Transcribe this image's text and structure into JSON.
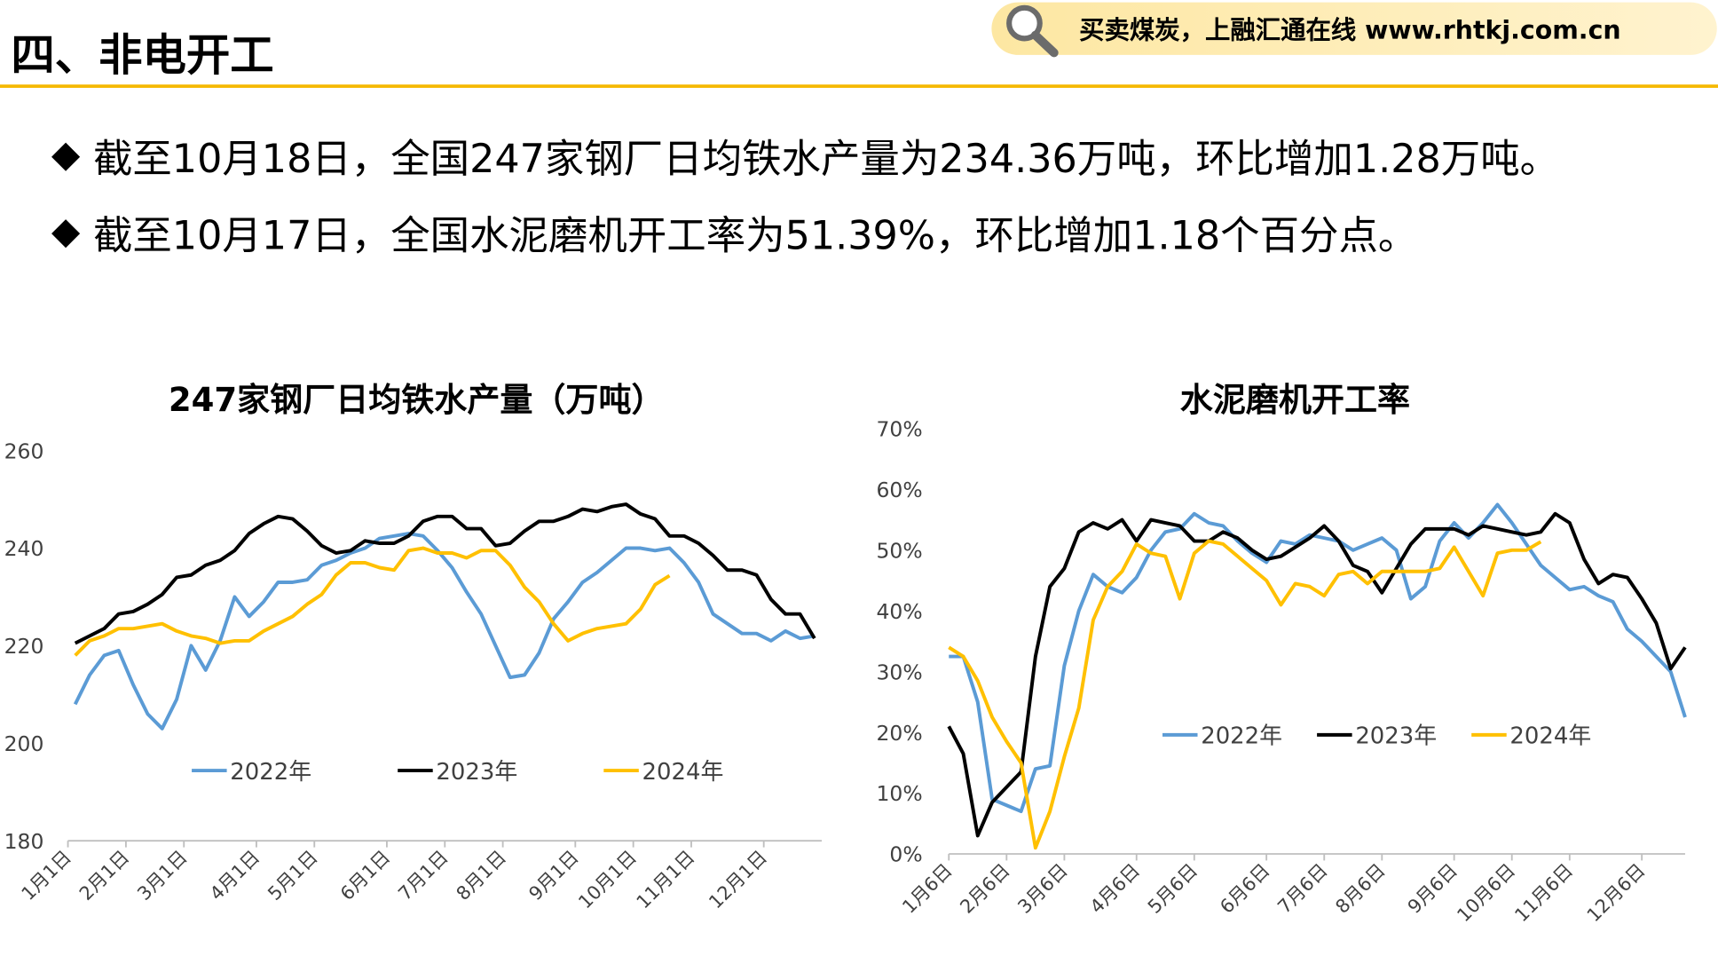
{
  "header": {
    "title": "四、非电开工",
    "banner": "买卖煤炭，上融汇通在线 www.rhtkj.com.cn"
  },
  "bullets": [
    "截至10月18日，全国247家钢厂日均铁水产量为234.36万吨，环比增加1.28万吨。",
    "截至10月17日，全国水泥磨机开工率为51.39%，环比增加1.18个百分点。"
  ],
  "chart_data": [
    {
      "type": "line",
      "title": "247家钢厂日均铁水产量（万吨）",
      "categories": [
        "1月1日",
        null,
        null,
        null,
        "2月1日",
        null,
        null,
        null,
        "3月1日",
        null,
        null,
        null,
        null,
        "4月1日",
        null,
        null,
        null,
        "5月1日",
        null,
        null,
        null,
        null,
        "6月1日",
        null,
        null,
        null,
        "7月1日",
        null,
        null,
        null,
        "8月1日",
        null,
        null,
        null,
        null,
        "9月1日",
        null,
        null,
        null,
        "10月1日",
        null,
        null,
        null,
        "11月1日",
        null,
        null,
        null,
        null,
        "12月1日",
        null,
        null,
        null
      ],
      "ylim": [
        180,
        260
      ],
      "yticks": [
        180,
        200,
        220,
        240,
        260
      ],
      "grid": false,
      "legend": "bottom",
      "series": [
        {
          "name": "2022年",
          "color": "#5b9bd5",
          "values": [
            208,
            214,
            218,
            219,
            212,
            206,
            203,
            209,
            220,
            215,
            221,
            230,
            226,
            229,
            233,
            233,
            233.5,
            236.5,
            237.5,
            239,
            240,
            242,
            242.5,
            243,
            242.5,
            239.5,
            236,
            231,
            226.5,
            220,
            213.5,
            214,
            218.5,
            225.5,
            229,
            233,
            235,
            237.5,
            240,
            240,
            239.5,
            240,
            237,
            233,
            226.5,
            224.5,
            222.5,
            222.5,
            221,
            223,
            221.5,
            222
          ]
        },
        {
          "name": "2023年",
          "color": "#000000",
          "values": [
            220.5,
            222,
            223.5,
            226.5,
            227,
            228.5,
            230.5,
            234,
            234.5,
            236.5,
            237.5,
            239.5,
            243,
            245,
            246.5,
            246,
            243.5,
            240.5,
            239,
            239.5,
            241.5,
            241,
            241,
            242.5,
            245.5,
            246.5,
            246.5,
            244,
            244,
            240.5,
            241,
            243.5,
            245.5,
            245.5,
            246.5,
            248,
            247.5,
            248.5,
            249,
            247,
            246,
            242.5,
            242.5,
            241,
            238.5,
            235.5,
            235.5,
            234.5,
            229.5,
            226.5,
            226.5,
            221.5
          ]
        },
        {
          "name": "2024年",
          "color": "#ffc000",
          "values": [
            218,
            221,
            222,
            223.5,
            223.5,
            224,
            224.5,
            223,
            222,
            221.5,
            220.5,
            221,
            221,
            223,
            224.5,
            226,
            228.5,
            230.5,
            234.5,
            237,
            237,
            236,
            235.5,
            239.5,
            240,
            239,
            239,
            238,
            239.5,
            239.5,
            236.5,
            232,
            229,
            224.5,
            221,
            222.5,
            223.5,
            224,
            224.5,
            227.5,
            232.5,
            234.36,
            null,
            null,
            null,
            null,
            null,
            null,
            null,
            null,
            null,
            null
          ]
        }
      ]
    },
    {
      "type": "line",
      "title": "水泥磨机开工率",
      "categories": [
        "1月6日",
        null,
        null,
        null,
        "2月6日",
        null,
        null,
        null,
        "3月6日",
        null,
        null,
        null,
        null,
        "4月6日",
        null,
        null,
        null,
        "5月6日",
        null,
        null,
        null,
        null,
        "6月6日",
        null,
        null,
        null,
        "7月6日",
        null,
        null,
        null,
        "8月6日",
        null,
        null,
        null,
        null,
        "9月6日",
        null,
        null,
        null,
        "10月6日",
        null,
        null,
        null,
        "11月6日",
        null,
        null,
        null,
        null,
        "12月6日",
        null,
        null,
        null
      ],
      "ylim": [
        0,
        70
      ],
      "yticks": [
        {
          "value": 0,
          "label": "0%"
        },
        {
          "value": 10,
          "label": "10%"
        },
        {
          "value": 20,
          "label": "20%"
        },
        {
          "value": 30,
          "label": "30%"
        },
        {
          "value": 40,
          "label": "40%"
        },
        {
          "value": 50,
          "label": "50%"
        },
        {
          "value": 60,
          "label": "60%"
        },
        {
          "value": 70,
          "label": "70%"
        }
      ],
      "grid": false,
      "legend": "center",
      "series": [
        {
          "name": "2022年",
          "color": "#5b9bd5",
          "values": [
            32.5,
            32.5,
            25,
            9,
            8,
            7,
            14,
            14.5,
            31,
            40,
            46,
            44,
            43,
            45.5,
            50,
            53,
            53.5,
            56,
            54.5,
            54,
            51.5,
            49.5,
            48,
            51.5,
            51,
            52.5,
            52,
            51.5,
            50,
            51,
            52,
            50,
            42,
            44,
            51.5,
            54.5,
            52,
            54.5,
            57.5,
            54.5,
            51,
            47.5,
            45.5,
            43.5,
            44,
            42.5,
            41.5,
            37,
            35,
            32.5,
            30,
            22.5
          ]
        },
        {
          "name": "2023年",
          "color": "#000000",
          "values": [
            21,
            16.5,
            3,
            8.5,
            11,
            13.5,
            32.5,
            44,
            47,
            53,
            54.5,
            53.5,
            55,
            51.5,
            55,
            54.5,
            54,
            51.5,
            51.5,
            53,
            52,
            50,
            48.5,
            49,
            50.5,
            52,
            54,
            51.5,
            47.5,
            46.5,
            43,
            47,
            51,
            53.5,
            53.5,
            53.5,
            52.5,
            54,
            53.5,
            53,
            52.5,
            53,
            56,
            54.5,
            48.5,
            44.5,
            46,
            45.5,
            42,
            38,
            30.5,
            34
          ]
        },
        {
          "name": "2024年",
          "color": "#ffc000",
          "values": [
            34,
            32.5,
            28.5,
            22.5,
            18.5,
            15,
            1,
            7,
            16,
            24,
            38.5,
            44,
            46.5,
            51,
            49.5,
            49,
            42,
            49.5,
            51.5,
            51,
            49,
            47,
            45,
            41,
            44.5,
            44,
            42.5,
            46,
            46.5,
            44.5,
            46.5,
            46.5,
            46.5,
            46.5,
            47,
            50.5,
            46.5,
            42.5,
            49.5,
            50,
            50,
            51.39,
            null,
            null,
            null,
            null,
            null,
            null,
            null,
            null,
            null,
            null
          ]
        }
      ]
    }
  ]
}
